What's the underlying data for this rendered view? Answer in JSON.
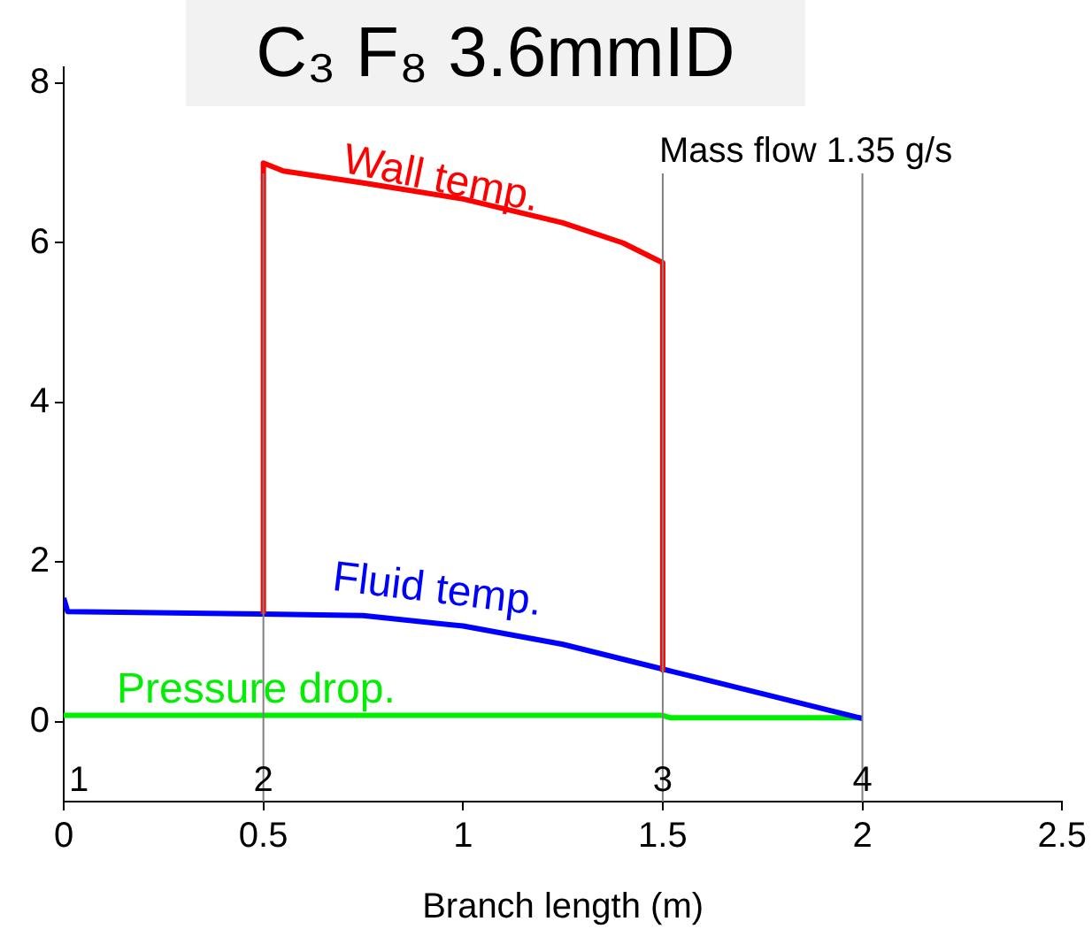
{
  "chart_data": {
    "type": "line",
    "title": "C₃ F₈ 3.6mmID",
    "xlabel": "Branch length (m)",
    "xlim": [
      0,
      2.5
    ],
    "xticks": [
      0,
      0.5,
      1,
      1.5,
      2,
      2.5
    ],
    "ylim": [
      -1,
      8.2
    ],
    "yticks": [
      0,
      2,
      4,
      6,
      8
    ],
    "grid": false,
    "legend": false,
    "marker": "none",
    "line_style": "solid",
    "series": [
      {
        "name": "Wall temp.",
        "color": "#ff0000",
        "x": [
          0.5,
          0.5,
          0.55,
          0.75,
          1.0,
          1.25,
          1.4,
          1.5,
          1.5
        ],
        "values": [
          1.35,
          7.0,
          6.9,
          6.75,
          6.55,
          6.25,
          6.0,
          5.75,
          0.65
        ]
      },
      {
        "name": "Fluid temp.",
        "color": "#0000ff",
        "x": [
          0,
          0.01,
          0.5,
          0.75,
          1.0,
          1.25,
          1.5,
          1.75,
          2.0
        ],
        "values": [
          1.55,
          1.38,
          1.35,
          1.33,
          1.2,
          0.97,
          0.66,
          0.35,
          0.04
        ]
      },
      {
        "name": "Pressure drop.",
        "color": "#00ee00",
        "x": [
          0,
          1.5,
          1.52,
          2.0
        ],
        "values": [
          0.08,
          0.08,
          0.05,
          0.05
        ]
      }
    ],
    "ref_lines": [
      {
        "axis": "x",
        "value": 0.5,
        "color": "#808080"
      },
      {
        "axis": "x",
        "value": 1.5,
        "color": "#808080"
      },
      {
        "axis": "x",
        "value": 2,
        "color": "#808080"
      }
    ],
    "annotations": [
      "Mass flow 1.35 g/s",
      "1",
      {
        "text": "2",
        "x": 0.5,
        "y": -0.75
      },
      {
        "text": "3",
        "x": 1.5,
        "y": -0.75
      },
      {
        "text": "4",
        "x": 2,
        "y": -0.75
      }
    ]
  }
}
